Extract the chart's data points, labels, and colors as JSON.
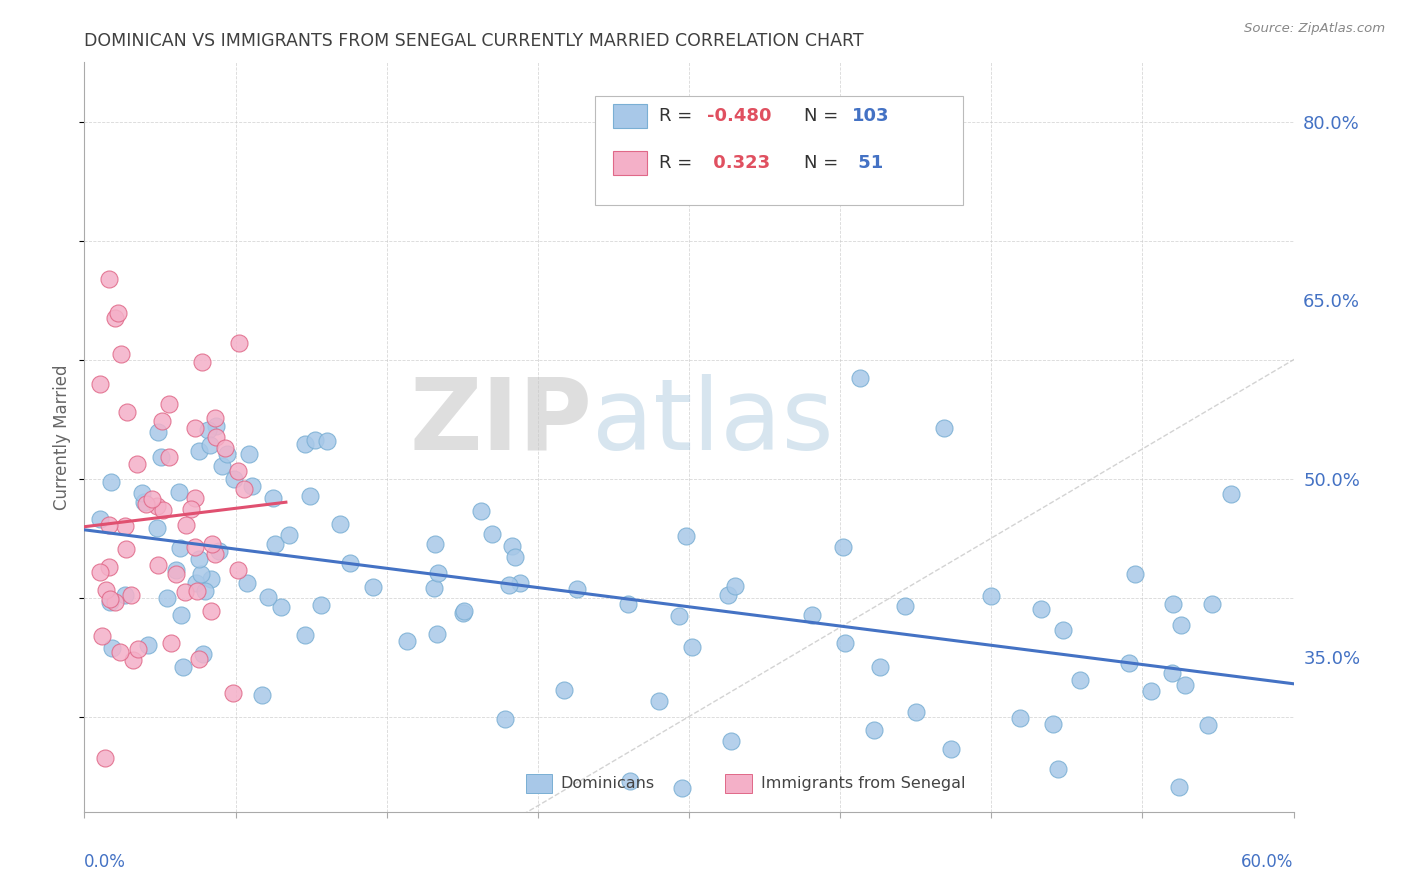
{
  "title": "DOMINICAN VS IMMIGRANTS FROM SENEGAL CURRENTLY MARRIED CORRELATION CHART",
  "source": "Source: ZipAtlas.com",
  "ylabel": "Currently Married",
  "right_yticks": [
    0.35,
    0.5,
    0.65,
    0.8
  ],
  "right_ytick_labels": [
    "35.0%",
    "50.0%",
    "65.0%",
    "80.0%"
  ],
  "xlim": [
    0.0,
    0.6
  ],
  "ylim": [
    0.22,
    0.85
  ],
  "watermark_zip": "ZIP",
  "watermark_atlas": "atlas",
  "dominican_color": "#a8c8e8",
  "dominican_edge": "#7aafd4",
  "senegal_color": "#f4b0c8",
  "senegal_edge": "#e06888",
  "dominican_line_color": "#4472c4",
  "senegal_line_color": "#e05070",
  "diagonal_color": "#c8c8c8",
  "background_color": "#ffffff",
  "grid_color": "#c8c8c8",
  "title_color": "#404040",
  "title_fontsize": 12.5,
  "axis_label_color": "#4472c4",
  "r_neg_color": "#e05060",
  "r_pos_color": "#e05060",
  "n_color": "#4472c4",
  "legend_box_color": "#aaaaaa",
  "dom_R": "-0.480",
  "dom_N": "103",
  "sen_R": "0.323",
  "sen_N": "51",
  "dom_label": "Dominicans",
  "sen_label": "Immigrants from Senegal"
}
